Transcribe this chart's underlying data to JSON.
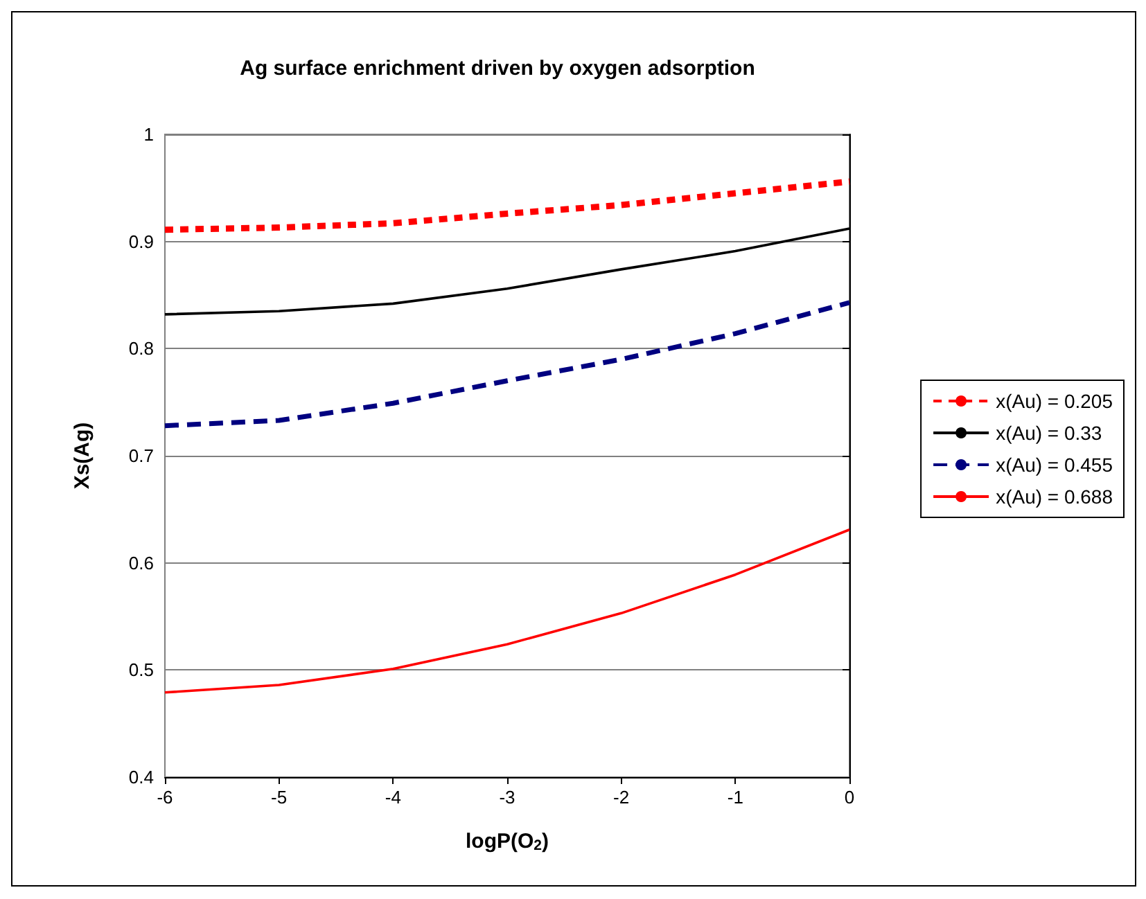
{
  "chart_data": {
    "type": "line",
    "title": "Ag surface enrichment driven by oxygen adsorption",
    "xlabel": "logP(O$_{2}$)",
    "ylabel": "Xs(Ag)",
    "x": [
      -6,
      -5,
      -4,
      -3,
      -2,
      -1,
      0
    ],
    "series": [
      {
        "name": "x(Au) = 0.205",
        "color": "#ff0000",
        "line_style": "dotted",
        "values": [
          0.911,
          0.913,
          0.917,
          0.926,
          0.934,
          0.945,
          0.956
        ]
      },
      {
        "name": "x(Au) = 0.33",
        "color": "#000000",
        "line_style": "solid",
        "values": [
          0.832,
          0.835,
          0.842,
          0.856,
          0.874,
          0.891,
          0.912
        ]
      },
      {
        "name": "x(Au) = 0.455",
        "color": "#000080",
        "line_style": "dashed",
        "values": [
          0.728,
          0.733,
          0.749,
          0.77,
          0.79,
          0.814,
          0.843
        ]
      },
      {
        "name": "x(Au) = 0.688",
        "color": "#ff0000",
        "line_style": "solid",
        "values": [
          0.479,
          0.486,
          0.501,
          0.524,
          0.553,
          0.589,
          0.631
        ]
      }
    ],
    "xlim": [
      -6,
      0
    ],
    "xticks": [
      -6,
      -5,
      -4,
      -3,
      -2,
      -1,
      0
    ],
    "ylim": [
      0.4,
      1
    ],
    "yticks": [
      0.4,
      0.5,
      0.6,
      0.7,
      0.8,
      0.9,
      1
    ],
    "grid": "y",
    "legend": "right",
    "marker": "none"
  }
}
